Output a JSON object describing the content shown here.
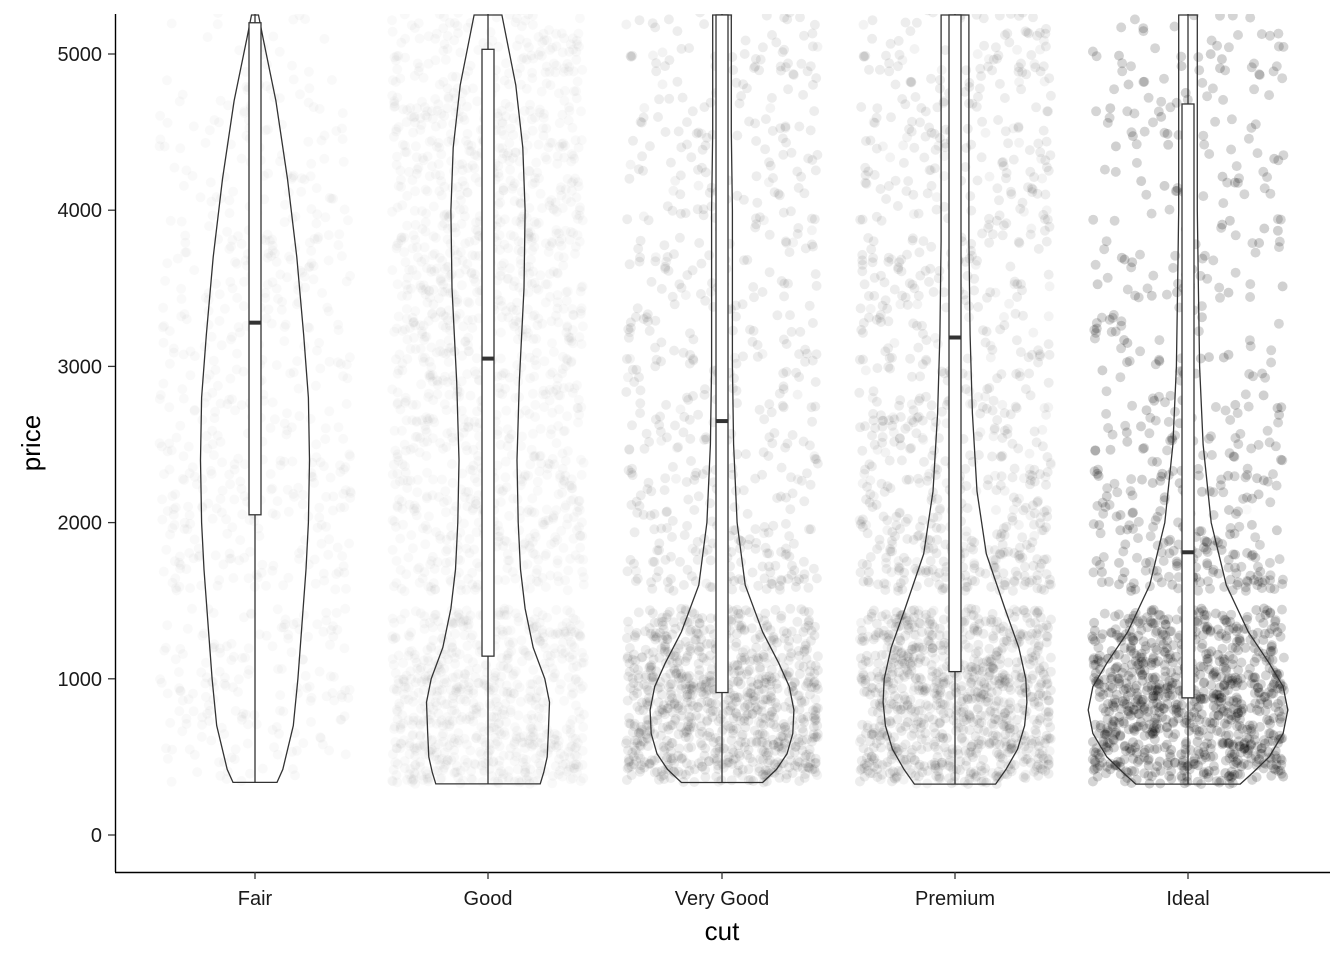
{
  "chart_data": {
    "type": "violin",
    "overlays": [
      "boxplot",
      "jittered-points"
    ],
    "title": "",
    "xlabel": "cut",
    "ylabel": "price",
    "categories": [
      "Fair",
      "Good",
      "Very Good",
      "Premium",
      "Ideal"
    ],
    "ylim": [
      -250,
      5250
    ],
    "yticks": [
      0,
      1000,
      2000,
      3000,
      4000,
      5000
    ],
    "ytick_labels": [
      "0",
      "1000",
      "2000",
      "3000",
      "4000",
      "5000"
    ],
    "grid": false,
    "legend": "none",
    "boxplot": [
      {
        "category": "Fair",
        "q1": 2050,
        "median": 3280,
        "q3": 5200,
        "whisker_low": 337
      },
      {
        "category": "Good",
        "q1": 1145,
        "median": 3050,
        "q3": 5030,
        "whisker_low": 327
      },
      {
        "category": "Very Good",
        "q1": 912,
        "median": 2650,
        "q3": 5250,
        "whisker_low": 336
      },
      {
        "category": "Premium",
        "q1": 1046,
        "median": 3185,
        "q3": 5250,
        "whisker_low": 326
      },
      {
        "category": "Ideal",
        "q1": 878,
        "median": 1810,
        "q3": 4680,
        "whisker_low": 326
      }
    ],
    "violin_min": 326,
    "violin_profiles": [
      {
        "category": "Fair",
        "halfwidth": [
          [
            337,
            0.19
          ],
          [
            420,
            0.24
          ],
          [
            700,
            0.33
          ],
          [
            1000,
            0.37
          ],
          [
            1300,
            0.4
          ],
          [
            1700,
            0.44
          ],
          [
            2000,
            0.46
          ],
          [
            2400,
            0.47
          ],
          [
            2800,
            0.46
          ],
          [
            3200,
            0.42
          ],
          [
            3700,
            0.36
          ],
          [
            4200,
            0.28
          ],
          [
            4700,
            0.18
          ],
          [
            5100,
            0.07
          ],
          [
            5250,
            0.03
          ]
        ]
      },
      {
        "category": "Good",
        "halfwidth": [
          [
            327,
            0.45
          ],
          [
            400,
            0.48
          ],
          [
            500,
            0.51
          ],
          [
            650,
            0.52
          ],
          [
            850,
            0.53
          ],
          [
            1000,
            0.49
          ],
          [
            1200,
            0.39
          ],
          [
            1450,
            0.32
          ],
          [
            1700,
            0.28
          ],
          [
            2000,
            0.26
          ],
          [
            2400,
            0.25
          ],
          [
            2900,
            0.27
          ],
          [
            3500,
            0.31
          ],
          [
            4000,
            0.32
          ],
          [
            4400,
            0.3
          ],
          [
            4800,
            0.24
          ],
          [
            5250,
            0.12
          ]
        ]
      },
      {
        "category": "Very Good",
        "halfwidth": [
          [
            336,
            0.35
          ],
          [
            420,
            0.47
          ],
          [
            520,
            0.56
          ],
          [
            650,
            0.61
          ],
          [
            800,
            0.62
          ],
          [
            950,
            0.58
          ],
          [
            1100,
            0.49
          ],
          [
            1300,
            0.35
          ],
          [
            1600,
            0.2
          ],
          [
            2000,
            0.13
          ],
          [
            2500,
            0.1
          ],
          [
            3000,
            0.09
          ],
          [
            3500,
            0.09
          ],
          [
            4000,
            0.09
          ],
          [
            4500,
            0.08
          ],
          [
            5000,
            0.08
          ],
          [
            5250,
            0.08
          ]
        ]
      },
      {
        "category": "Premium",
        "halfwidth": [
          [
            326,
            0.35
          ],
          [
            420,
            0.44
          ],
          [
            550,
            0.54
          ],
          [
            700,
            0.6
          ],
          [
            850,
            0.62
          ],
          [
            1000,
            0.61
          ],
          [
            1200,
            0.55
          ],
          [
            1450,
            0.43
          ],
          [
            1800,
            0.27
          ],
          [
            2200,
            0.19
          ],
          [
            2700,
            0.15
          ],
          [
            3200,
            0.13
          ],
          [
            3800,
            0.12
          ],
          [
            4300,
            0.12
          ],
          [
            4800,
            0.12
          ],
          [
            5250,
            0.12
          ]
        ]
      },
      {
        "category": "Ideal",
        "halfwidth": [
          [
            326,
            0.45
          ],
          [
            400,
            0.56
          ],
          [
            500,
            0.7
          ],
          [
            650,
            0.82
          ],
          [
            800,
            0.86
          ],
          [
            950,
            0.82
          ],
          [
            1100,
            0.7
          ],
          [
            1300,
            0.52
          ],
          [
            1600,
            0.33
          ],
          [
            2000,
            0.2
          ],
          [
            2500,
            0.13
          ],
          [
            3000,
            0.1
          ],
          [
            3500,
            0.09
          ],
          [
            4000,
            0.08
          ],
          [
            4500,
            0.08
          ],
          [
            5000,
            0.08
          ],
          [
            5250,
            0.08
          ]
        ]
      }
    ],
    "jitter": {
      "opacity": 0.025,
      "price_gap": [
        1450,
        1560
      ],
      "relative_counts": [
        1,
        3,
        6,
        7,
        14
      ]
    }
  }
}
